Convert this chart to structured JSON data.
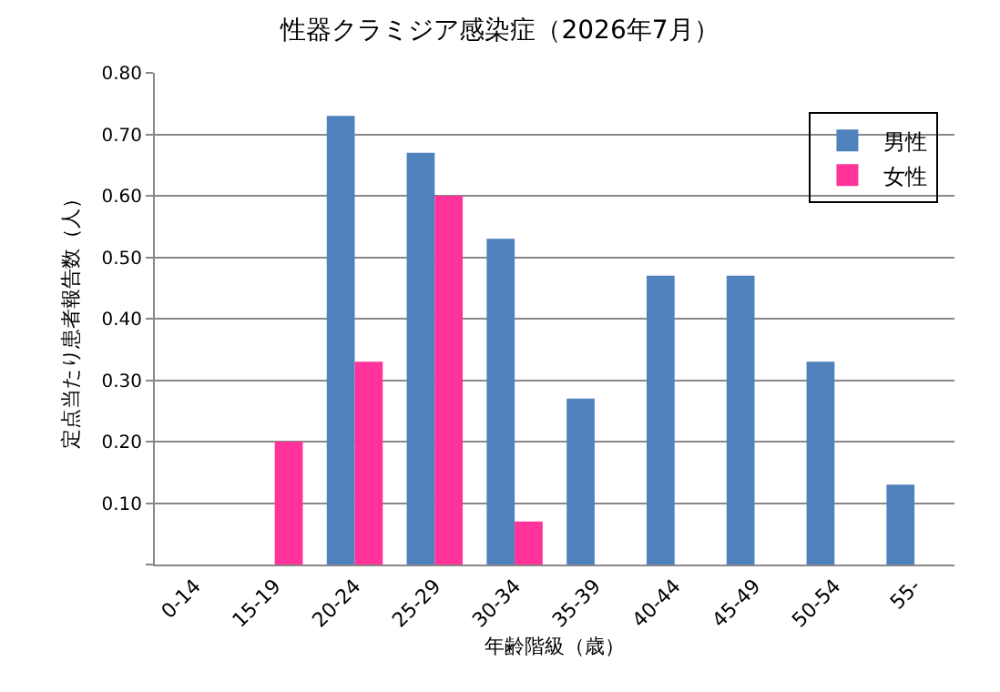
{
  "chart_data": {
    "type": "bar",
    "title": "性器クラミジア感染症（2026年7月）",
    "xlabel": "年齢階級（歳）",
    "ylabel": "定点当たり患者報告数（人）",
    "categories": [
      "0-14",
      "15-19",
      "20-24",
      "25-29",
      "30-34",
      "35-39",
      "40-44",
      "45-49",
      "50-54",
      "55-"
    ],
    "series": [
      {
        "name": "男性",
        "color": "#4f81bd",
        "values": [
          0,
          0,
          0.73,
          0.67,
          0.53,
          0.27,
          0.47,
          0.47,
          0.33,
          0.13
        ]
      },
      {
        "name": "女性",
        "color": "#ff3399",
        "values": [
          0,
          0.2,
          0.33,
          0.6,
          0.07,
          0,
          0,
          0,
          0,
          0
        ]
      }
    ],
    "ylim": [
      0,
      0.8
    ],
    "yticks": [
      {
        "value": 0,
        "label": null
      },
      {
        "value": 0.1,
        "label": "0.10"
      },
      {
        "value": 0.2,
        "label": "0.20"
      },
      {
        "value": 0.3,
        "label": "0.30"
      },
      {
        "value": 0.4,
        "label": "0.40"
      },
      {
        "value": 0.5,
        "label": "0.50"
      },
      {
        "value": 0.6,
        "label": "0.60"
      },
      {
        "value": 0.7,
        "label": "0.70"
      },
      {
        "value": 0.8,
        "label": "0.80"
      }
    ],
    "grid": "y",
    "legend": "top right"
  }
}
